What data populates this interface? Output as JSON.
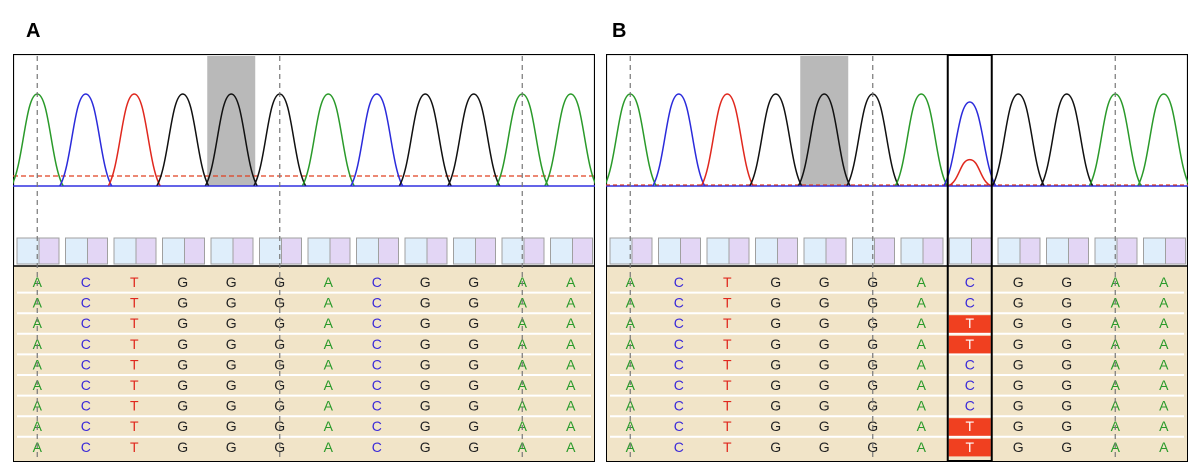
{
  "panels": [
    {
      "label": "A",
      "colors": [
        "green",
        "blue",
        "red",
        "black",
        "black",
        "black",
        "green",
        "blue",
        "black",
        "black",
        "green",
        "green"
      ],
      "rows": [
        [
          "A",
          "C",
          "T",
          "G",
          "G",
          "G",
          "A",
          "C",
          "G",
          "G",
          "A",
          "A"
        ],
        [
          "A",
          "C",
          "T",
          "G",
          "G",
          "G",
          "A",
          "C",
          "G",
          "G",
          "A",
          "A"
        ],
        [
          "A",
          "C",
          "T",
          "G",
          "G",
          "G",
          "A",
          "C",
          "G",
          "G",
          "A",
          "A"
        ],
        [
          "A",
          "C",
          "T",
          "G",
          "G",
          "G",
          "A",
          "C",
          "G",
          "G",
          "A",
          "A"
        ],
        [
          "A",
          "C",
          "T",
          "G",
          "G",
          "G",
          "A",
          "C",
          "G",
          "G",
          "A",
          "A"
        ],
        [
          "A",
          "C",
          "T",
          "G",
          "G",
          "G",
          "A",
          "C",
          "G",
          "G",
          "A",
          "A"
        ],
        [
          "A",
          "C",
          "T",
          "G",
          "G",
          "G",
          "A",
          "C",
          "G",
          "G",
          "A",
          "A"
        ],
        [
          "A",
          "C",
          "T",
          "G",
          "G",
          "G",
          "A",
          "C",
          "G",
          "G",
          "A",
          "A"
        ],
        [
          "A",
          "C",
          "T",
          "G",
          "G",
          "G",
          "A",
          "C",
          "G",
          "G",
          "A",
          "A"
        ]
      ],
      "highlighted_column": 4,
      "dashed_columns": [
        0,
        5,
        10
      ],
      "selected_column": null
    },
    {
      "label": "B",
      "colors": [
        "green",
        "blue",
        "red",
        "black",
        "black",
        "black",
        "green",
        "blue",
        "black",
        "black",
        "green",
        "green"
      ],
      "rows": [
        [
          "A",
          "C",
          "T",
          "G",
          "G",
          "G",
          "A",
          "C",
          "G",
          "G",
          "A",
          "A"
        ],
        [
          "A",
          "C",
          "T",
          "G",
          "G",
          "G",
          "A",
          "C",
          "G",
          "G",
          "A",
          "A"
        ],
        [
          "A",
          "C",
          "T",
          "G",
          "G",
          "G",
          "A",
          "T",
          "G",
          "G",
          "A",
          "A"
        ],
        [
          "A",
          "C",
          "T",
          "G",
          "G",
          "G",
          "A",
          "T",
          "G",
          "G",
          "A",
          "A"
        ],
        [
          "A",
          "C",
          "T",
          "G",
          "G",
          "G",
          "A",
          "C",
          "G",
          "G",
          "A",
          "A"
        ],
        [
          "A",
          "C",
          "T",
          "G",
          "G",
          "G",
          "A",
          "C",
          "G",
          "G",
          "A",
          "A"
        ],
        [
          "A",
          "C",
          "T",
          "G",
          "G",
          "G",
          "A",
          "C",
          "G",
          "G",
          "A",
          "A"
        ],
        [
          "A",
          "C",
          "T",
          "G",
          "G",
          "G",
          "A",
          "T",
          "G",
          "G",
          "A",
          "A"
        ],
        [
          "A",
          "C",
          "T",
          "G",
          "G",
          "G",
          "A",
          "T",
          "G",
          "G",
          "A",
          "A"
        ]
      ],
      "highlighted_column": 4,
      "dashed_columns": [
        0,
        5,
        10
      ],
      "selected_column": 7,
      "mismatch_base": "T",
      "mismatch_color": "#f04020",
      "secondary_peak": {
        "column": 7,
        "color": "red",
        "level": 0.22
      }
    }
  ],
  "base_colors": {
    "A": "#2a9a2a",
    "C": "#3b2ad8",
    "T": "#e0281e",
    "G": "#222222"
  },
  "trace_colors": {
    "green": "#2a9a2a",
    "blue": "#2b2bdb",
    "red": "#e0281e",
    "black": "#111111"
  },
  "grid_background": "#f1e4c8",
  "quality_fill": "#dfeefb",
  "quality_fill_alt": "#e3d6f5"
}
